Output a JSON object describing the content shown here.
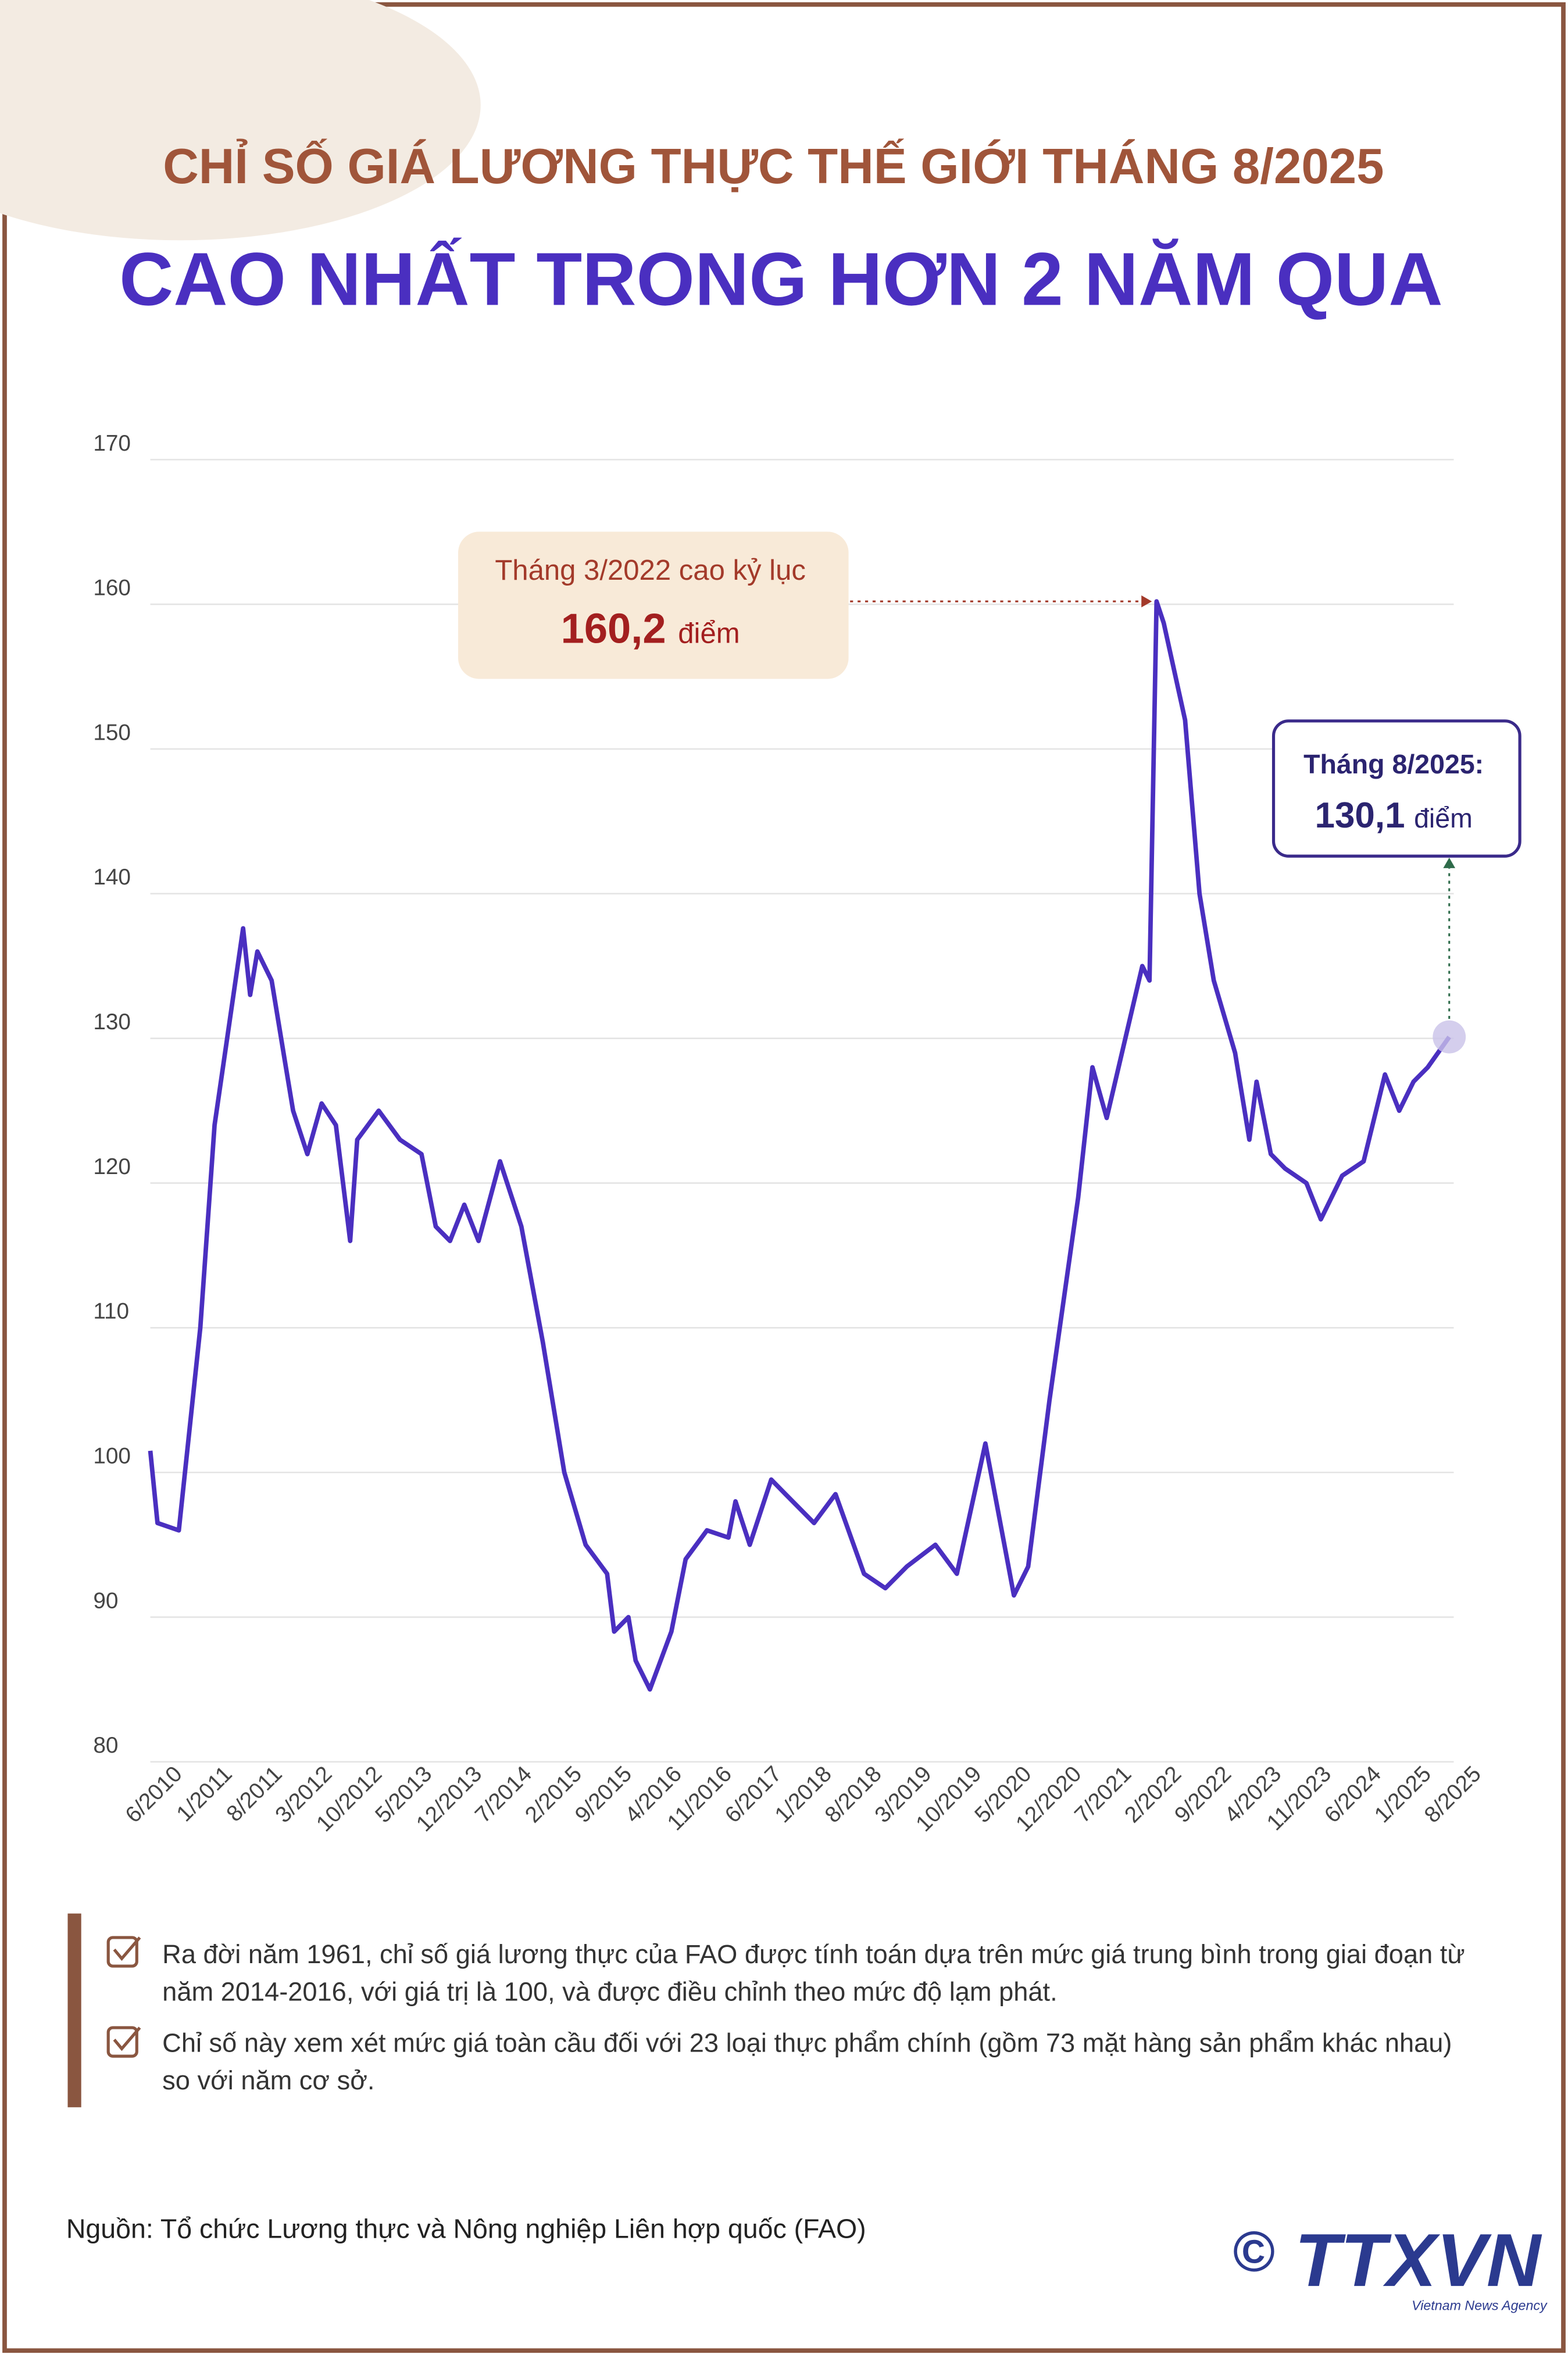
{
  "header": {
    "title": "CHỈ SỐ GIÁ LƯƠNG THỰC THẾ GIỚI THÁNG 8/2025",
    "subtitle": "CAO NHẤT TRONG HƠN 2 NĂM QUA"
  },
  "chart_data": {
    "type": "line",
    "x": [
      "6/2010",
      "7/2010",
      "10/2010",
      "1/2011",
      "3/2011",
      "7/2011",
      "8/2011",
      "9/2011",
      "11/2011",
      "1/2012",
      "2/2012",
      "4/2012",
      "6/2012",
      "8/2012",
      "10/2012",
      "11/2012",
      "2/2013",
      "5/2013",
      "8/2013",
      "10/2013",
      "12/2013",
      "2/2014",
      "4/2014",
      "7/2014",
      "10/2014",
      "1/2015",
      "4/2015",
      "7/2015",
      "10/2015",
      "11/2015",
      "1/2016",
      "2/2016",
      "4/2016",
      "7/2016",
      "9/2016",
      "12/2016",
      "3/2017",
      "4/2017",
      "6/2017",
      "9/2017",
      "11/2017",
      "3/2018",
      "6/2018",
      "10/2018",
      "1/2019",
      "4/2019",
      "8/2019",
      "11/2019",
      "3/2020",
      "7/2020",
      "9/2020",
      "12/2020",
      "4/2021",
      "6/2021",
      "8/2021",
      "1/2022",
      "2/2022",
      "3/2022",
      "4/2022",
      "7/2022",
      "9/2022",
      "11/2022",
      "2/2023",
      "4/2023",
      "5/2023",
      "7/2023",
      "9/2023",
      "12/2023",
      "2/2024",
      "5/2024",
      "8/2024",
      "11/2024",
      "1/2025",
      "3/2025",
      "5/2025",
      "8/2025"
    ],
    "series": [
      {
        "color": "#4a2fc0",
        "values": [
          101.5,
          96.5,
          96,
          110,
          124,
          137.6,
          133,
          136,
          134,
          128,
          125,
          122,
          125.5,
          124,
          116,
          123,
          125,
          123,
          122,
          117,
          116,
          118.5,
          116,
          121.5,
          117,
          109,
          100,
          95,
          93,
          89,
          90,
          87,
          85,
          89,
          94,
          96,
          95.5,
          98,
          95,
          99.5,
          98.5,
          96.5,
          98.5,
          93,
          92,
          93.5,
          95,
          93,
          102,
          91.5,
          93.5,
          105,
          119,
          128,
          124.5,
          135,
          134,
          160.2,
          158.7,
          152,
          140,
          134,
          129,
          123,
          127,
          122,
          121,
          120,
          117.5,
          120.5,
          121.5,
          127.5,
          125,
          127,
          128,
          130.1
        ]
      }
    ],
    "xticks": [
      "6/2010",
      "1/2011",
      "8/2011",
      "3/2012",
      "10/2012",
      "5/2013",
      "12/2013",
      "7/2014",
      "2/2015",
      "9/2015",
      "4/2016",
      "11/2016",
      "6/2017",
      "1/2018",
      "8/2018",
      "3/2019",
      "10/2019",
      "5/2020",
      "12/2020",
      "7/2021",
      "2/2022",
      "9/2022",
      "4/2023",
      "11/2023",
      "6/2024",
      "1/2025",
      "8/2025"
    ],
    "ylim": [
      80,
      170
    ],
    "yticks": [
      80,
      90,
      100,
      110,
      120,
      130,
      140,
      150,
      160,
      170
    ],
    "grid": true,
    "annotations": [
      {
        "text": "Tháng 3/2022 cao kỷ lục",
        "value": 160.2,
        "value_label": "160,2",
        "unit": "điểm"
      },
      {
        "text": "Tháng 8/2025:",
        "value": 130.1,
        "value_label": "130,1",
        "unit": "điểm"
      }
    ]
  },
  "notes": [
    "Ra đời năm 1961, chỉ số giá lương thực của FAO được tính toán dựa trên mức giá trung bình trong giai đoạn từ năm 2014-2016, với giá trị là 100, và được điều chỉnh theo mức độ lạm phát.",
    "Chỉ số này xem xét mức giá toàn cầu đối với 23 loại thực phẩm chính (gồm 73 mặt hàng sản phẩm khác nhau) so với năm cơ sở."
  ],
  "source": "Nguồn: Tổ chức Lương thực và Nông nghiệp Liên hợp quốc (FAO)",
  "logo": {
    "copyright": "©",
    "name": "TTXVN",
    "tagline": "Vietnam News Agency"
  }
}
